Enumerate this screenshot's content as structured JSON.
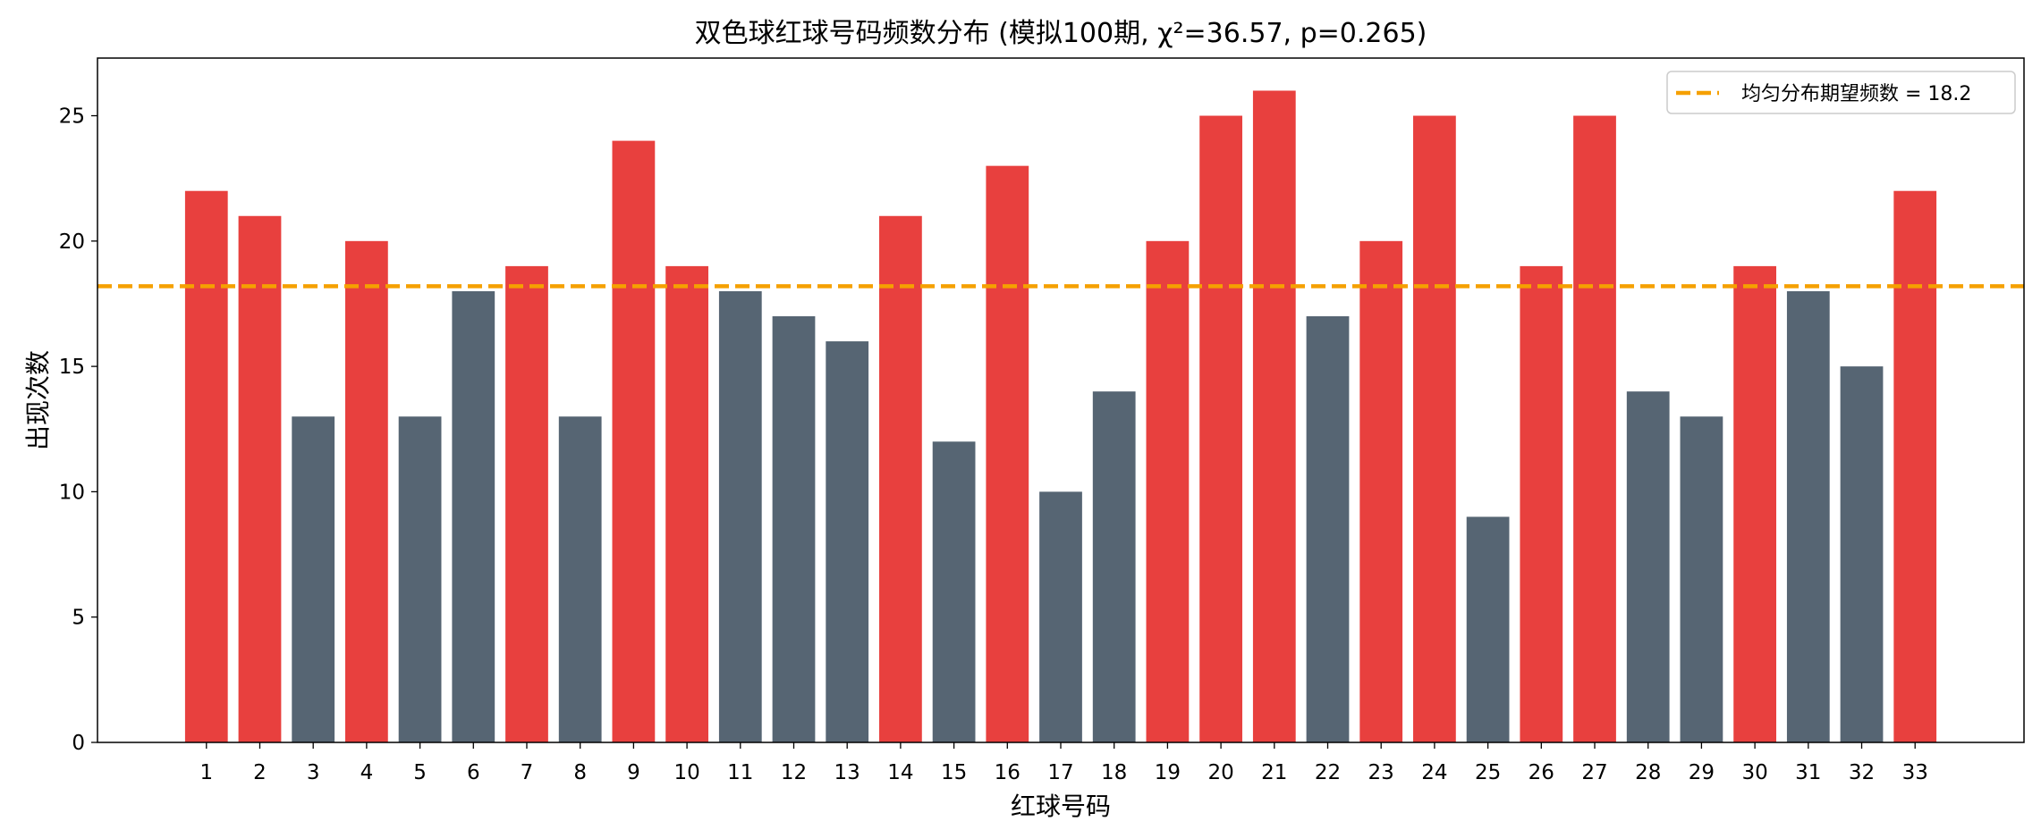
{
  "chart_data": {
    "type": "bar",
    "title": "双色球红球号码频数分布 (模拟100期, χ²=36.57, p=0.265)",
    "xlabel": "红球号码",
    "ylabel": "出现次数",
    "categories": [
      "1",
      "2",
      "3",
      "4",
      "5",
      "6",
      "7",
      "8",
      "9",
      "10",
      "11",
      "12",
      "13",
      "14",
      "15",
      "16",
      "17",
      "18",
      "19",
      "20",
      "21",
      "22",
      "23",
      "24",
      "25",
      "26",
      "27",
      "28",
      "29",
      "30",
      "31",
      "32",
      "33"
    ],
    "values": [
      22,
      21,
      13,
      20,
      13,
      18,
      19,
      13,
      24,
      19,
      18,
      17,
      16,
      21,
      12,
      23,
      10,
      14,
      20,
      25,
      26,
      17,
      20,
      25,
      9,
      19,
      25,
      14,
      13,
      19,
      18,
      15,
      22
    ],
    "ylim": [
      0,
      27.3
    ],
    "yticks": [
      0,
      5,
      10,
      15,
      20,
      25
    ],
    "grid": false,
    "reference_line": {
      "label": "均匀分布期望频数 = 18.2",
      "value": 18.2,
      "style": "dashed",
      "color": "#f5a000"
    },
    "legend": {
      "position": "top-right"
    },
    "colors": {
      "above_expected": "#e8403e",
      "below_expected": "#566573",
      "axes": "#000000"
    }
  }
}
